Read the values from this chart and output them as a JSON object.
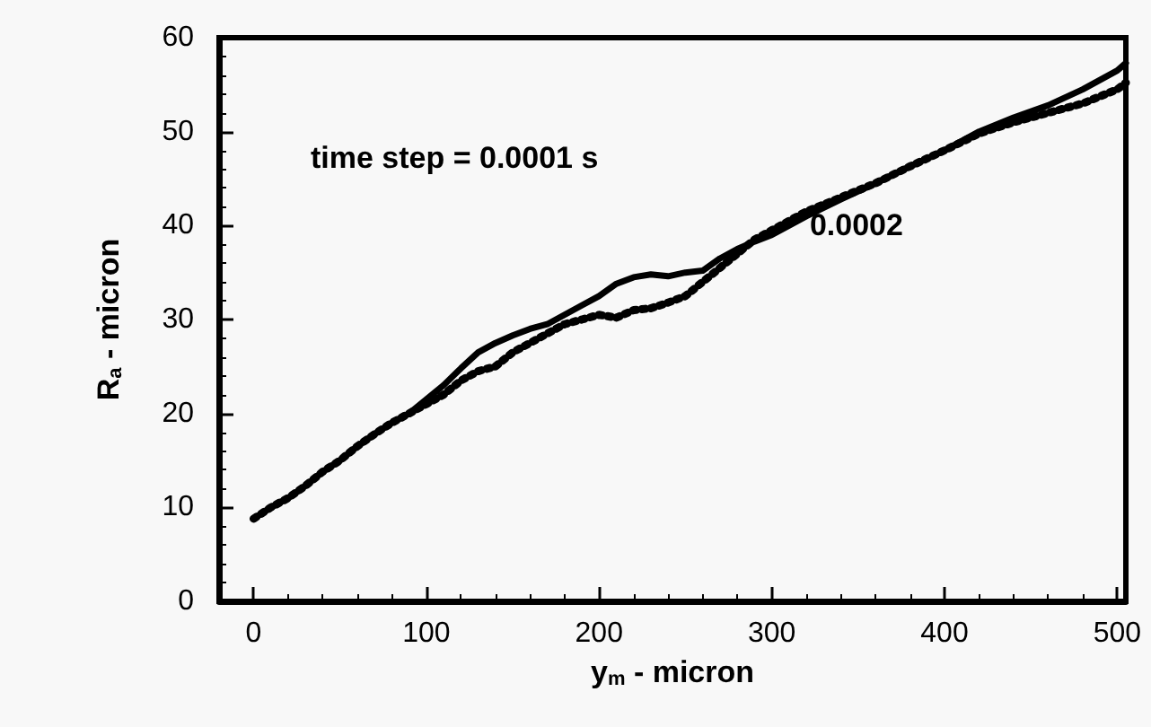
{
  "chart_data": {
    "type": "line",
    "xlabel": "y$_{m}$ - micron",
    "ylabel": "R$_{a}$ - micron",
    "xlim": [
      -20,
      505
    ],
    "ylim": [
      0,
      60
    ],
    "xticks": [
      0,
      100,
      200,
      300,
      400,
      500
    ],
    "yticks": [
      0,
      10,
      20,
      30,
      40,
      50,
      60
    ],
    "grid": false,
    "marker": "none",
    "annotations": [
      "time step = 0.0001 s",
      {
        "text": "0.0002",
        "x": 322,
        "y": 40
      }
    ],
    "series": [
      {
        "color": "#000000",
        "line_style": "solid",
        "x": [
          0,
          10,
          20,
          30,
          40,
          50,
          60,
          70,
          80,
          90,
          100,
          110,
          120,
          130,
          140,
          150,
          160,
          170,
          180,
          190,
          200,
          210,
          220,
          230,
          240,
          250,
          260,
          270,
          280,
          290,
          300,
          320,
          340,
          360,
          380,
          400,
          420,
          440,
          460,
          480,
          500,
          505
        ],
        "values": [
          8.8,
          10,
          11,
          12.3,
          13.8,
          15,
          16.5,
          17.8,
          19,
          20,
          21.5,
          23,
          24.8,
          26.5,
          27.5,
          28.3,
          29,
          29.5,
          30.5,
          31.5,
          32.5,
          33.8,
          34.5,
          34.8,
          34.6,
          35,
          35.2,
          36.5,
          37.5,
          38.3,
          39,
          41,
          42.8,
          44.5,
          46.3,
          48,
          50,
          51.5,
          52.8,
          54.5,
          56.5,
          57.3
        ]
      },
      {
        "color": "#000000",
        "line_style": "dotted",
        "x": [
          0,
          10,
          20,
          30,
          40,
          50,
          60,
          70,
          80,
          90,
          100,
          110,
          120,
          130,
          140,
          150,
          160,
          170,
          180,
          190,
          200,
          210,
          220,
          230,
          240,
          250,
          260,
          270,
          280,
          290,
          300,
          320,
          340,
          360,
          380,
          400,
          420,
          440,
          460,
          480,
          500,
          505
        ],
        "values": [
          8.8,
          10,
          11,
          12.3,
          13.8,
          15,
          16.5,
          17.8,
          19,
          20,
          21,
          22,
          23.5,
          24.5,
          25,
          26.5,
          27.5,
          28.5,
          29.5,
          30,
          30.5,
          30.2,
          31,
          31.2,
          31.8,
          32.5,
          34,
          35.5,
          37,
          38.5,
          39.5,
          41.5,
          43,
          44.5,
          46.3,
          48,
          49.8,
          51,
          52,
          53,
          54.5,
          55.2
        ]
      }
    ]
  }
}
